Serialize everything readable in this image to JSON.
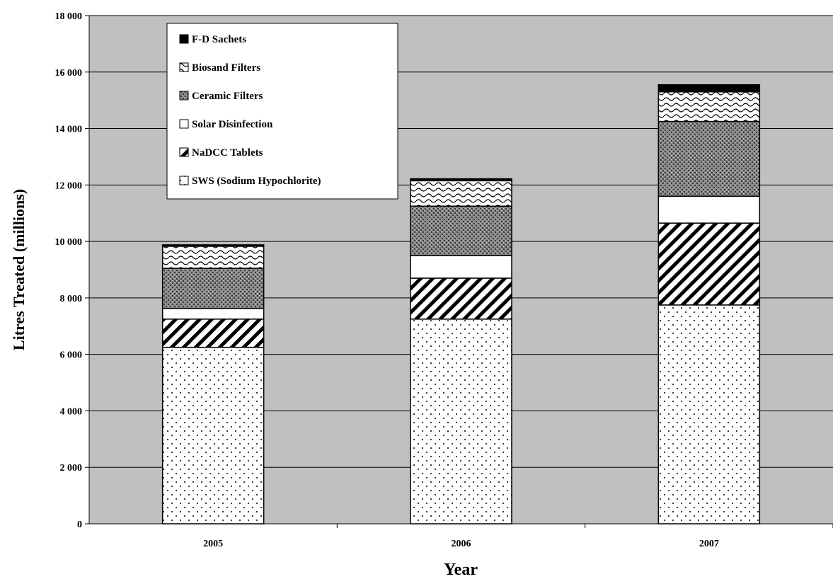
{
  "chart_data": {
    "type": "bar",
    "stacked": true,
    "categories": [
      "2005",
      "2006",
      "2007"
    ],
    "series": [
      {
        "name": "SWS (Sodium Hypochlorite)",
        "values": [
          6250,
          7250,
          7750
        ],
        "pattern": "dots"
      },
      {
        "name": "NaDCC Tablets",
        "values": [
          1000,
          1450,
          2900
        ],
        "pattern": "diagonal"
      },
      {
        "name": "Solar Disinfection",
        "values": [
          380,
          800,
          950
        ],
        "pattern": "white"
      },
      {
        "name": "Ceramic Filters",
        "values": [
          1420,
          1750,
          2650
        ],
        "pattern": "crosshatch"
      },
      {
        "name": "Biosand Filters",
        "values": [
          780,
          900,
          1050
        ],
        "pattern": "waves"
      },
      {
        "name": "F-D Sachets",
        "values": [
          50,
          70,
          250
        ],
        "pattern": "black"
      }
    ],
    "xlabel": "Year",
    "ylabel": "Litres Treated (millions)",
    "ylim": [
      0,
      18000
    ],
    "yticks": [
      0,
      2000,
      4000,
      6000,
      8000,
      10000,
      12000,
      14000,
      16000,
      18000
    ],
    "ytick_labels": [
      "0",
      "2 000",
      "4 000",
      "6 000",
      "8 000",
      "10 000",
      "12 000",
      "14 000",
      "16 000",
      "18 000"
    ],
    "grid": true,
    "legend_position": "top-left",
    "plot_background": "#c0c0c0"
  }
}
